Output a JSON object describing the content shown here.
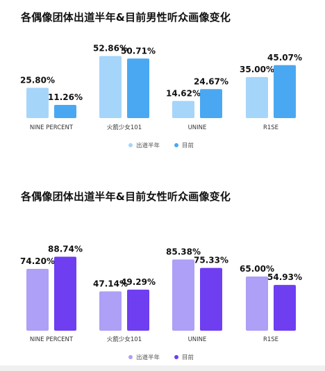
{
  "chart_data": [
    {
      "type": "bar",
      "title": "各偶像团体出道半年&目前男性听众画像变化",
      "categories": [
        "NINE PERCENT",
        "火箭少女101",
        "UNINE",
        "R1SE"
      ],
      "series": [
        {
          "name": "出道半年",
          "values": [
            25.8,
            52.86,
            14.62,
            35.0
          ],
          "labels": [
            "25.80%",
            "52.86%",
            "14.62%",
            "35.00%"
          ],
          "color": "#a6d5fa"
        },
        {
          "name": "目前",
          "values": [
            11.26,
            50.71,
            24.67,
            45.07
          ],
          "labels": [
            "11.26%",
            "50.71%",
            "24.67%",
            "45.07%"
          ],
          "color": "#4aa8f2"
        }
      ],
      "ylim": [
        0,
        55
      ],
      "legend": "bottom-center",
      "grid": false
    },
    {
      "type": "bar",
      "title": "各偶像团体出道半年&目前女性听众画像变化",
      "categories": [
        "NINE PERCENT",
        "火箭少女101",
        "UNINE",
        "R1SE"
      ],
      "series": [
        {
          "name": "出道半年",
          "values": [
            74.2,
            47.14,
            85.38,
            65.0
          ],
          "labels": [
            "74.20%",
            "47.14%",
            "85.38%",
            "65.00%"
          ],
          "color": "#ae9ff7"
        },
        {
          "name": "目前",
          "values": [
            88.74,
            49.29,
            75.33,
            54.93
          ],
          "labels": [
            "88.74%",
            "49.29%",
            "75.33%",
            "54.93%"
          ],
          "color": "#6e3ef0"
        }
      ],
      "ylim": [
        0,
        90
      ],
      "legend": "bottom-center",
      "grid": false
    }
  ]
}
